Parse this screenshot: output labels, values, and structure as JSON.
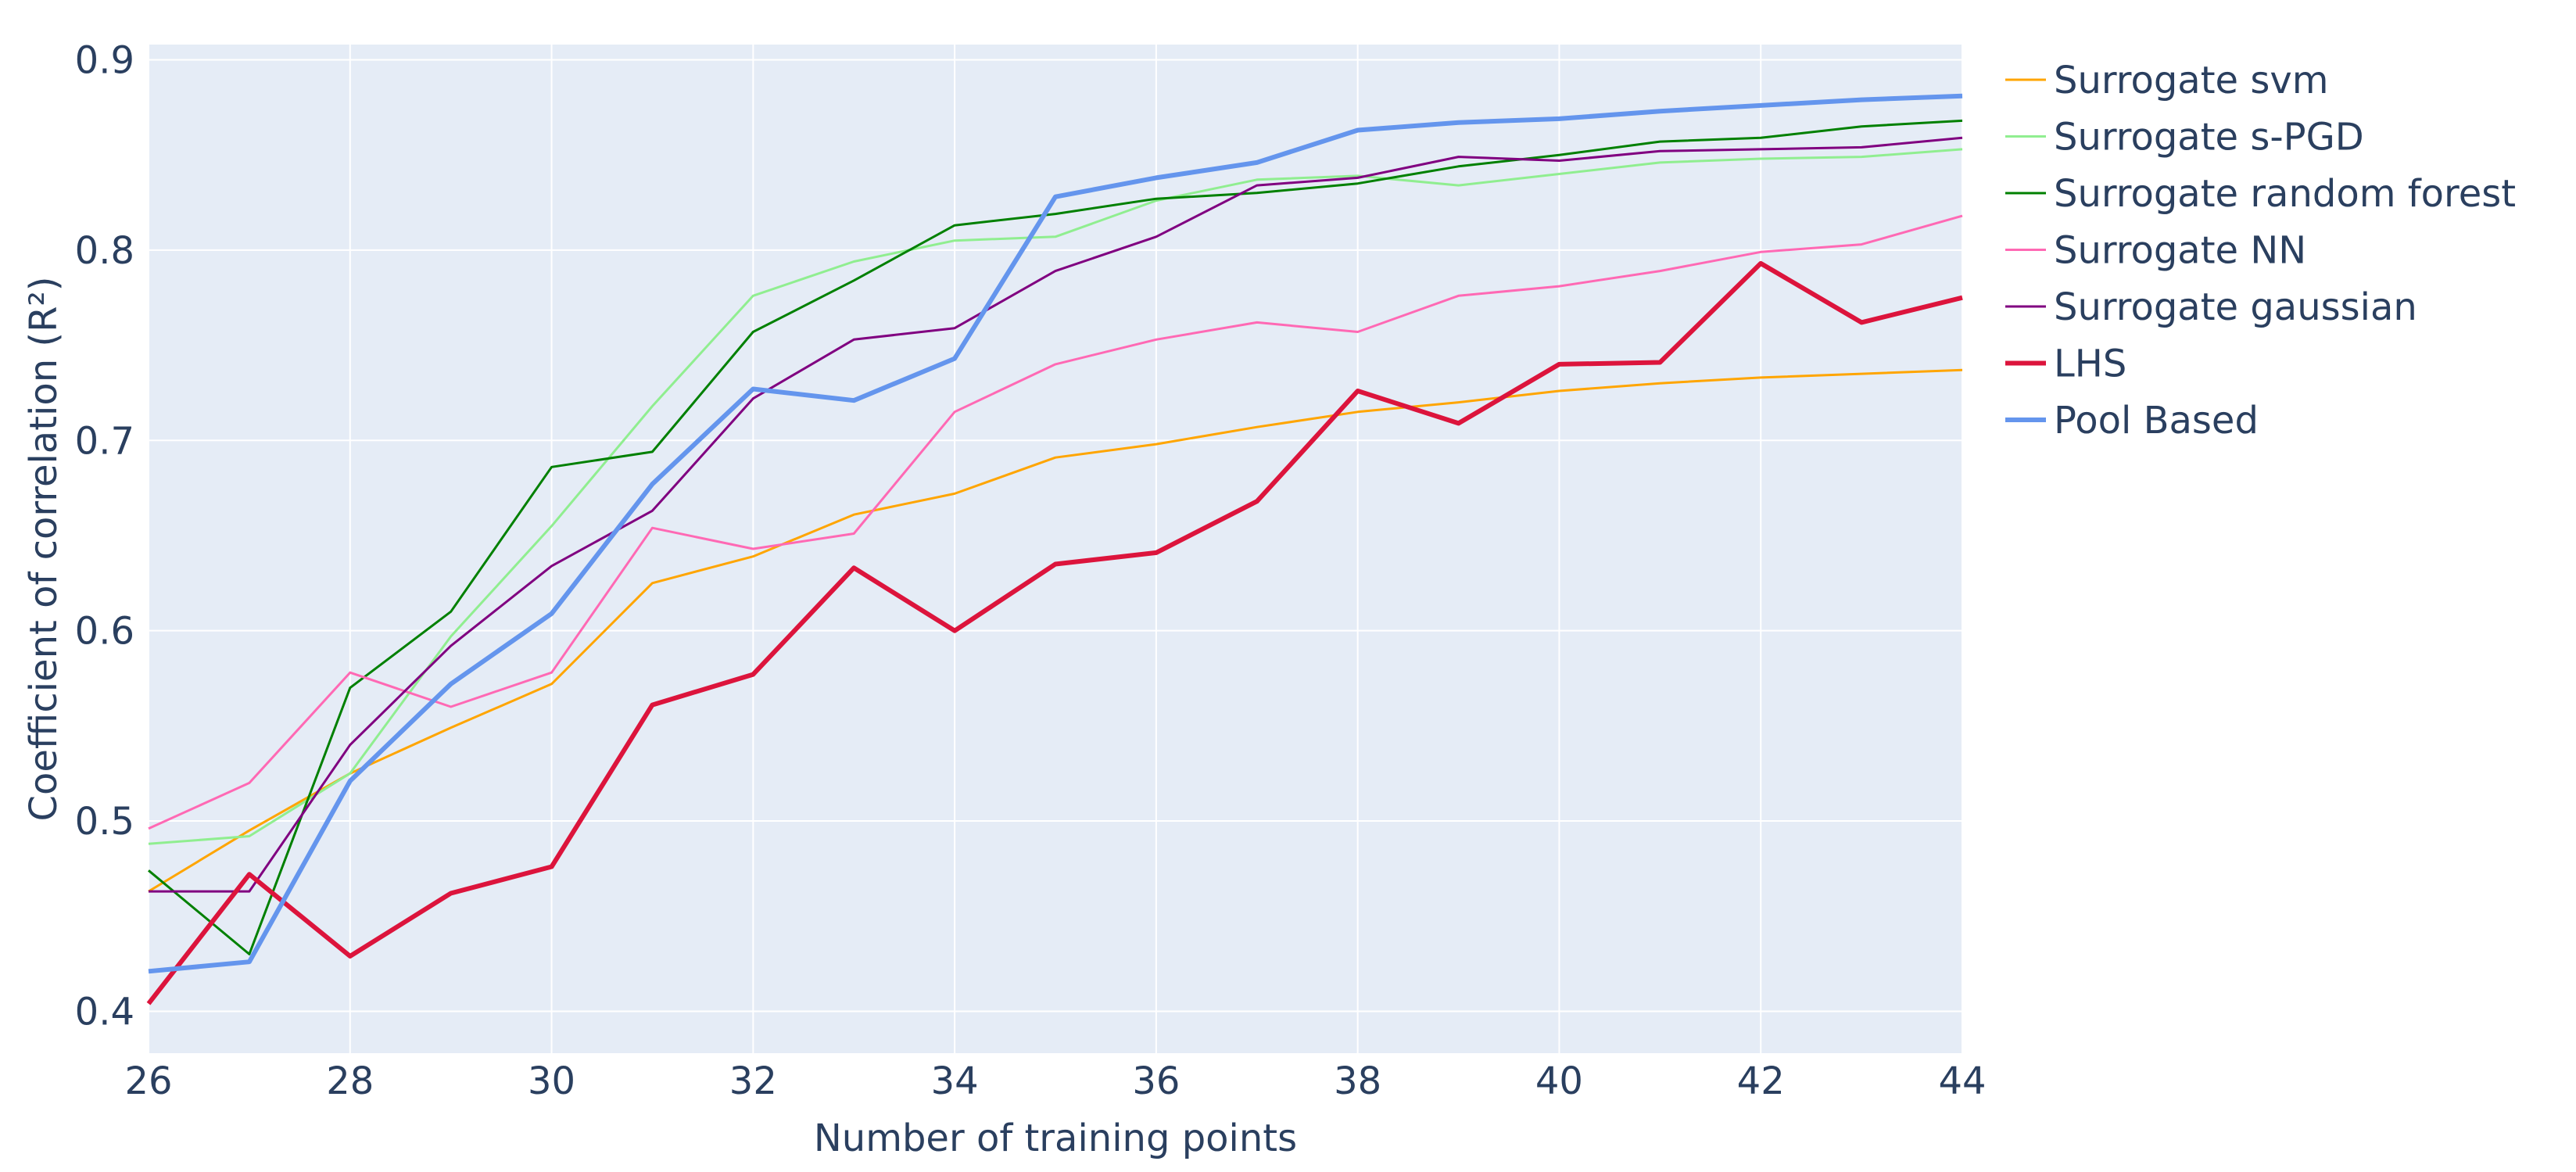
{
  "chart_data": {
    "type": "line",
    "xlabel": "Number of training points",
    "ylabel": "Coefficient of correlation (R²)",
    "xlim": [
      26,
      44
    ],
    "ylim": [
      0.378,
      0.908
    ],
    "x_ticks": [
      26,
      28,
      30,
      32,
      34,
      36,
      38,
      40,
      42,
      44
    ],
    "y_ticks": [
      0.4,
      0.5,
      0.6,
      0.7,
      0.8,
      0.9
    ],
    "grid": true,
    "legend_position": "right",
    "x": [
      26,
      27,
      28,
      29,
      30,
      31,
      32,
      33,
      34,
      35,
      36,
      37,
      38,
      39,
      40,
      41,
      42,
      43,
      44
    ],
    "series": [
      {
        "name": "Surrogate svm",
        "color": "#FFA500",
        "width": 3,
        "values": [
          0.463,
          0.495,
          0.525,
          0.549,
          0.572,
          0.625,
          0.639,
          0.661,
          0.672,
          0.691,
          0.698,
          0.707,
          0.715,
          0.72,
          0.726,
          0.73,
          0.733,
          0.735,
          0.737
        ]
      },
      {
        "name": "Surrogate s-PGD",
        "color": "#90EE90",
        "width": 3,
        "values": [
          0.488,
          0.492,
          0.525,
          0.597,
          0.655,
          0.718,
          0.776,
          0.794,
          0.805,
          0.807,
          0.826,
          0.837,
          0.839,
          0.834,
          0.84,
          0.846,
          0.848,
          0.849,
          0.853
        ]
      },
      {
        "name": "Surrogate random forest",
        "color": "#008000",
        "width": 3,
        "values": [
          0.474,
          0.43,
          0.57,
          0.61,
          0.686,
          0.694,
          0.757,
          0.784,
          0.813,
          0.819,
          0.827,
          0.83,
          0.835,
          0.844,
          0.85,
          0.857,
          0.859,
          0.865,
          0.868
        ]
      },
      {
        "name": "Surrogate NN",
        "color": "#FF69B4",
        "width": 3,
        "values": [
          0.496,
          0.52,
          0.578,
          0.56,
          0.578,
          0.654,
          0.643,
          0.651,
          0.715,
          0.74,
          0.753,
          0.762,
          0.757,
          0.776,
          0.781,
          0.789,
          0.799,
          0.803,
          0.818
        ]
      },
      {
        "name": "Surrogate gaussian",
        "color": "#800080",
        "width": 3,
        "values": [
          0.463,
          0.463,
          0.54,
          0.592,
          0.634,
          0.663,
          0.722,
          0.753,
          0.759,
          0.789,
          0.807,
          0.834,
          0.838,
          0.849,
          0.847,
          0.852,
          0.853,
          0.854,
          0.859
        ]
      },
      {
        "name": "LHS",
        "color": "#DC143C",
        "width": 6,
        "values": [
          0.404,
          0.472,
          0.429,
          0.462,
          0.476,
          0.561,
          0.577,
          0.633,
          0.6,
          0.635,
          0.641,
          0.668,
          0.726,
          0.709,
          0.74,
          0.741,
          0.793,
          0.762,
          0.775
        ]
      },
      {
        "name": "Pool Based",
        "color": "#6495ED",
        "width": 6,
        "values": [
          0.421,
          0.426,
          0.521,
          0.572,
          0.609,
          0.677,
          0.727,
          0.721,
          0.743,
          0.828,
          0.838,
          0.846,
          0.863,
          0.867,
          0.869,
          0.873,
          0.876,
          0.879,
          0.881
        ]
      }
    ]
  }
}
